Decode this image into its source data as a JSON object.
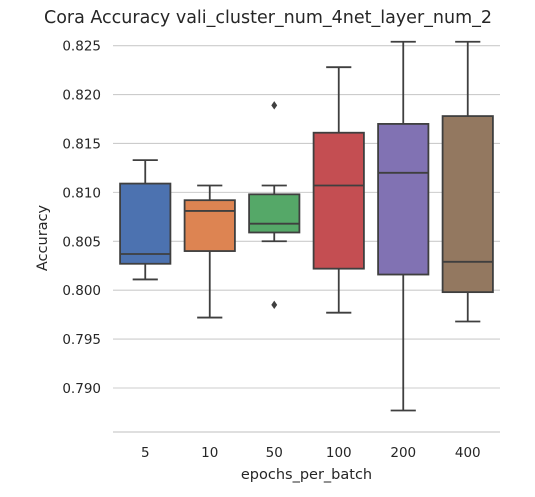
{
  "chart_data": {
    "type": "box",
    "title": "Cora Accuracy vali_cluster_num_4net_layer_num_2",
    "xlabel": "epochs_per_batch",
    "ylabel": "Accuracy",
    "categories": [
      "5",
      "10",
      "50",
      "100",
      "200",
      "400"
    ],
    "ylim": [
      0.7855,
      0.8265
    ],
    "y_ticks": [
      "0.790",
      "0.795",
      "0.800",
      "0.805",
      "0.810",
      "0.815",
      "0.820",
      "0.825"
    ],
    "grid": "horizontal",
    "boxes": [
      {
        "category": "5",
        "whisker_low": 0.8011,
        "q1": 0.8027,
        "median": 0.8037,
        "q3": 0.8109,
        "whisker_high": 0.8133,
        "outliers": [],
        "color": "#4c72b0"
      },
      {
        "category": "10",
        "whisker_low": 0.7972,
        "q1": 0.804,
        "median": 0.8081,
        "q3": 0.8092,
        "whisker_high": 0.8107,
        "outliers": [],
        "color": "#dd8452"
      },
      {
        "category": "50",
        "whisker_low": 0.805,
        "q1": 0.8059,
        "median": 0.8068,
        "q3": 0.8098,
        "whisker_high": 0.8107,
        "outliers": [
          0.8189,
          0.7985
        ],
        "color": "#55a868"
      },
      {
        "category": "100",
        "whisker_low": 0.7977,
        "q1": 0.8022,
        "median": 0.8107,
        "q3": 0.8161,
        "whisker_high": 0.8228,
        "outliers": [],
        "color": "#c44e52"
      },
      {
        "category": "200",
        "whisker_low": 0.7877,
        "q1": 0.8016,
        "median": 0.812,
        "q3": 0.817,
        "whisker_high": 0.8254,
        "outliers": [],
        "color": "#8172b3"
      },
      {
        "category": "400",
        "whisker_low": 0.7968,
        "q1": 0.7998,
        "median": 0.8029,
        "q3": 0.8178,
        "whisker_high": 0.8254,
        "outliers": [],
        "color": "#937860"
      }
    ]
  }
}
